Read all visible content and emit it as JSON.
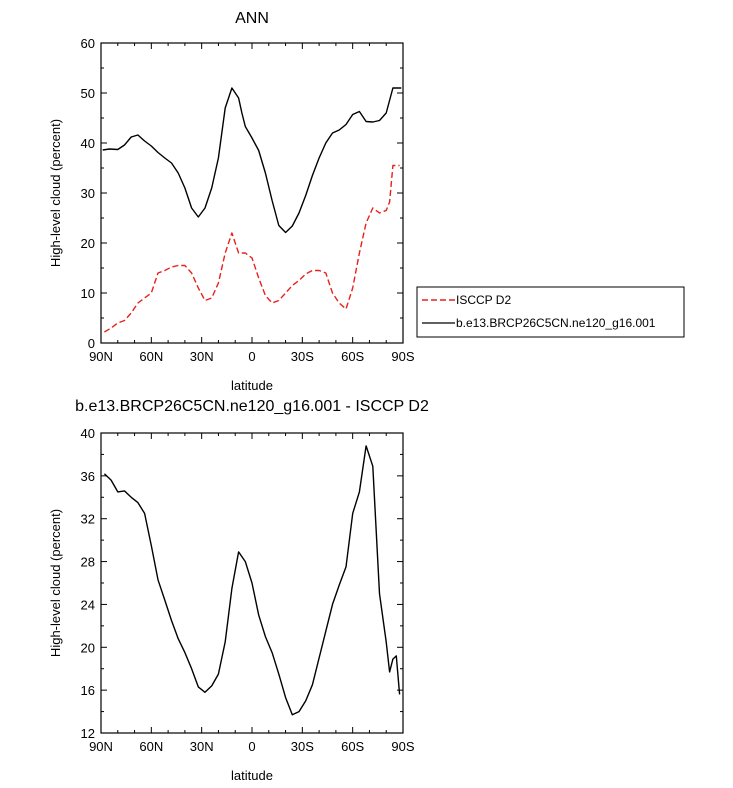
{
  "chart_data": [
    {
      "type": "line",
      "title": "ANN",
      "xlabel": "latitude",
      "ylabel": "High-level cloud (percent)",
      "xlim": [
        90,
        -90
      ],
      "ylim": [
        0,
        60
      ],
      "x_tick_values": [
        90,
        60,
        30,
        0,
        -30,
        -60,
        -90
      ],
      "x_tick_labels": [
        "90N",
        "60N",
        "30N",
        "0",
        "30S",
        "60S",
        "90S"
      ],
      "y_tick_values": [
        0,
        10,
        20,
        30,
        40,
        50,
        60
      ],
      "y_tick_labels": [
        "0",
        "10",
        "20",
        "30",
        "40",
        "50",
        "60"
      ],
      "grid": false,
      "legend_position": "right",
      "series": [
        {
          "name": "ISCCP D2",
          "color": "#e8211d",
          "dash": "dashed",
          "x": [
            88,
            84,
            80,
            76,
            72,
            68,
            64,
            60,
            56,
            52,
            48,
            44,
            40,
            36,
            32,
            28,
            24,
            20,
            16,
            12,
            8,
            4,
            0,
            -4,
            -8,
            -12,
            -16,
            -20,
            -24,
            -28,
            -32,
            -36,
            -40,
            -44,
            -48,
            -52,
            -56,
            -60,
            -64,
            -68,
            -72,
            -76,
            -80,
            -82,
            -84,
            -86,
            -88
          ],
          "y": [
            2.2,
            3,
            4,
            4.5,
            6,
            8,
            9,
            10,
            14,
            14.5,
            15.2,
            15.5,
            15.5,
            14,
            11,
            8.5,
            9,
            12,
            18,
            22,
            18,
            18,
            17,
            13,
            9.5,
            8,
            8.5,
            10,
            11.5,
            12.5,
            13.8,
            14.5,
            14.5,
            14,
            10,
            8,
            6.8,
            11,
            18,
            24,
            27,
            26,
            26.5,
            28.2,
            35.5,
            35.5,
            35.5
          ]
        },
        {
          "name": "b.e13.BRCP26C5CN.ne120_g16.001",
          "color": "#000000",
          "dash": "solid",
          "x": [
            89,
            85,
            80,
            76,
            72,
            68,
            64,
            60,
            56,
            52,
            48,
            44,
            40,
            36,
            32,
            28,
            24,
            20,
            16,
            12,
            8,
            6,
            4,
            0,
            -4,
            -8,
            -12,
            -16,
            -20,
            -24,
            -28,
            -32,
            -36,
            -40,
            -44,
            -48,
            -52,
            -56,
            -60,
            -64,
            -68,
            -72,
            -76,
            -80,
            -84,
            -86,
            -89
          ],
          "y": [
            38.6,
            38.8,
            38.7,
            39.6,
            41.2,
            41.6,
            40.4,
            39.4,
            38.1,
            37,
            36,
            34,
            31,
            27,
            25.2,
            27,
            31,
            37,
            47,
            51,
            49,
            46,
            43.3,
            41,
            38.5,
            34,
            28.5,
            23.5,
            22.1,
            23.4,
            26,
            29.5,
            33.5,
            37,
            40,
            42,
            42.6,
            43.7,
            45.7,
            46.3,
            44.3,
            44.2,
            44.5,
            46,
            51,
            51,
            51
          ]
        }
      ]
    },
    {
      "type": "line",
      "title": "b.e13.BRCP26C5CN.ne120_g16.001 - ISCCP D2",
      "xlabel": "latitude",
      "ylabel": "High-level cloud (percent)",
      "xlim": [
        90,
        -90
      ],
      "ylim": [
        12,
        40
      ],
      "x_tick_values": [
        90,
        60,
        30,
        0,
        -30,
        -60,
        -90
      ],
      "x_tick_labels": [
        "90N",
        "60N",
        "30N",
        "0",
        "30S",
        "60S",
        "90S"
      ],
      "y_tick_values": [
        12,
        16,
        20,
        24,
        28,
        32,
        36,
        40
      ],
      "y_tick_labels": [
        "12",
        "16",
        "20",
        "24",
        "28",
        "32",
        "36",
        "40"
      ],
      "grid": false,
      "series": [
        {
          "color": "#000000",
          "dash": "solid",
          "x": [
            88,
            84,
            80,
            76,
            72,
            68,
            64,
            60,
            56,
            52,
            48,
            44,
            40,
            36,
            32,
            28,
            24,
            20,
            16,
            12,
            8,
            4,
            0,
            -4,
            -8,
            -12,
            -16,
            -20,
            -24,
            -28,
            -32,
            -36,
            -40,
            -44,
            -48,
            -52,
            -56,
            -60,
            -64,
            -68,
            -72,
            -76,
            -80,
            -82,
            -84,
            -86,
            -88
          ],
          "y": [
            36.2,
            35.6,
            34.5,
            34.6,
            34,
            33.5,
            32.5,
            29.5,
            26.3,
            24.4,
            22.5,
            20.8,
            19.5,
            18,
            16.3,
            15.8,
            16.4,
            17.5,
            20.5,
            25.5,
            28.9,
            28,
            26,
            23,
            21,
            19.5,
            17.5,
            15.3,
            13.7,
            14,
            15,
            16.5,
            19,
            21.5,
            24,
            25.8,
            27.5,
            32.5,
            34.5,
            38.8,
            36.9,
            25,
            20.5,
            17.7,
            18.9,
            19.2,
            15.6
          ]
        }
      ]
    }
  ],
  "legend": {
    "items": [
      {
        "label": "ISCCP D2",
        "color": "#e8211d",
        "dash": "dashed"
      },
      {
        "label": "b.e13.BRCP26C5CN.ne120_g16.001",
        "color": "#000000",
        "dash": "solid"
      }
    ]
  }
}
